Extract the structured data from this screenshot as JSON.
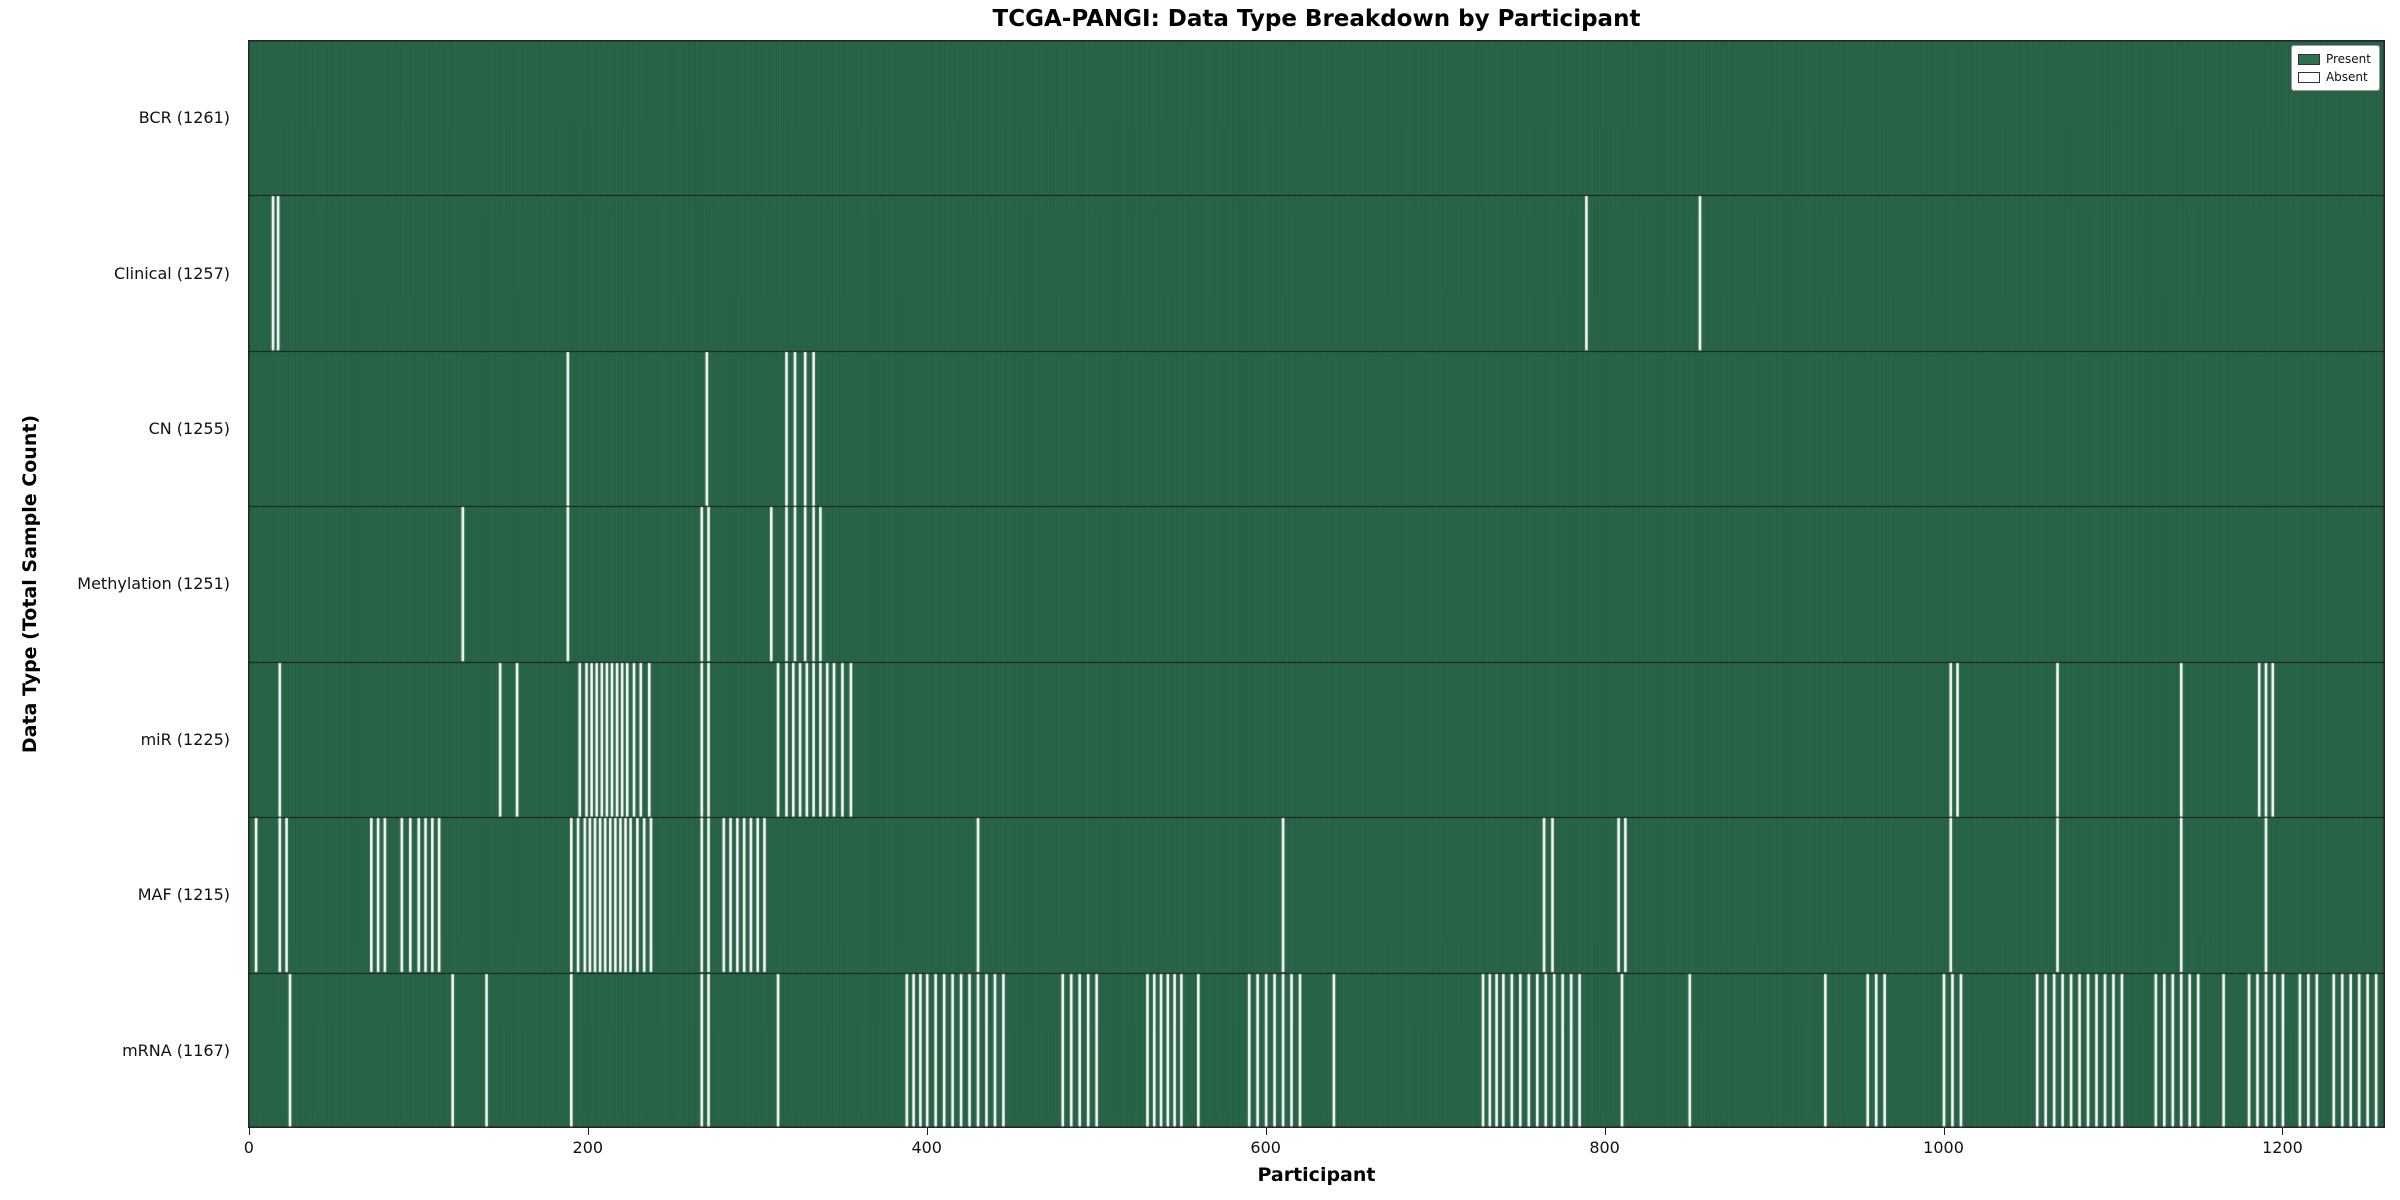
{
  "chart_data": {
    "type": "heatmap",
    "title": "TCGA-PANGI: Data Type Breakdown by Participant",
    "xlabel": "Participant",
    "ylabel": "Data Type (Total Sample Count)",
    "n_participants": 1261,
    "x_range": [
      0,
      1260
    ],
    "x_ticks": [
      0,
      200,
      400,
      600,
      800,
      1000,
      1200
    ],
    "grid": false,
    "legend_position": "upper right",
    "legend": [
      {
        "label": "Present",
        "color": "#2f7050"
      },
      {
        "label": "Absent",
        "color": "#ffffff"
      }
    ],
    "colors": {
      "present": "#2f7050",
      "absent": "#ffffff",
      "edge": "rgba(10,35,22,0.55)",
      "separator": "#1a1a1a",
      "spine": "#222222"
    },
    "rows": [
      {
        "label": "BCR (1261)",
        "name": "BCR",
        "count": 1261,
        "absent": []
      },
      {
        "label": "Clinical (1257)",
        "name": "Clinical",
        "count": 1257,
        "absent": [
          14,
          17,
          789,
          856
        ]
      },
      {
        "label": "CN (1255)",
        "name": "CN",
        "count": 1255,
        "absent": [
          188,
          270,
          317,
          322,
          328,
          333
        ]
      },
      {
        "label": "Methylation (1251)",
        "name": "Methylation",
        "count": 1251,
        "absent": [
          126,
          188,
          267,
          271,
          308,
          317,
          322,
          328,
          333,
          337
        ]
      },
      {
        "label": "miR (1225)",
        "name": "miR",
        "count": 1225,
        "absent": [
          18,
          148,
          158,
          195,
          199,
          202,
          205,
          208,
          211,
          214,
          217,
          220,
          223,
          227,
          231,
          236,
          267,
          271,
          312,
          317,
          321,
          325,
          329,
          333,
          337,
          341,
          345,
          350,
          355,
          1004,
          1008,
          1067,
          1140,
          1186,
          1190,
          1194
        ]
      },
      {
        "label": "MAF (1215)",
        "name": "MAF",
        "count": 1215,
        "absent": [
          4,
          18,
          22,
          72,
          76,
          80,
          90,
          95,
          100,
          104,
          108,
          112,
          190,
          194,
          198,
          201,
          204,
          207,
          210,
          213,
          216,
          219,
          222,
          225,
          229,
          233,
          237,
          267,
          271,
          280,
          284,
          288,
          292,
          296,
          300,
          304,
          430,
          610,
          764,
          769,
          808,
          812,
          1004,
          1067,
          1140,
          1190
        ]
      },
      {
        "label": "mRNA (1167)",
        "name": "mRNA",
        "count": 1167,
        "absent": [
          24,
          120,
          140,
          190,
          267,
          271,
          312,
          388,
          392,
          396,
          400,
          405,
          410,
          415,
          420,
          425,
          430,
          435,
          440,
          445,
          480,
          485,
          490,
          495,
          500,
          530,
          534,
          538,
          542,
          546,
          550,
          560,
          590,
          595,
          600,
          605,
          610,
          615,
          620,
          640,
          728,
          732,
          736,
          740,
          745,
          750,
          755,
          760,
          765,
          770,
          775,
          780,
          785,
          810,
          850,
          930,
          955,
          960,
          965,
          1000,
          1005,
          1010,
          1055,
          1060,
          1065,
          1070,
          1075,
          1080,
          1085,
          1090,
          1095,
          1100,
          1105,
          1125,
          1130,
          1135,
          1140,
          1145,
          1150,
          1165,
          1180,
          1185,
          1190,
          1195,
          1200,
          1210,
          1215,
          1220,
          1230,
          1235,
          1240,
          1245,
          1250,
          1255
        ]
      }
    ]
  }
}
